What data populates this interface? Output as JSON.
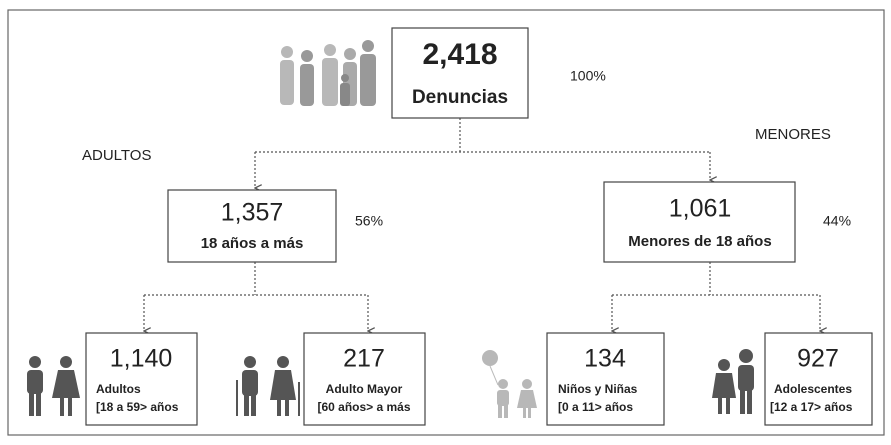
{
  "root": {
    "value": "2,418",
    "label": "Denuncias",
    "percent": "100%"
  },
  "groups": [
    "ADULTOS",
    "MENORES"
  ],
  "level2": [
    {
      "value": "1,357",
      "label": "18 años a más",
      "percent": "56%"
    },
    {
      "value": "1,061",
      "label": "Menores de 18 años",
      "percent": "44%"
    }
  ],
  "level3": [
    {
      "value": "1,140",
      "label": "Adultos",
      "range": "[18 a 59> años"
    },
    {
      "value": "217",
      "label": "Adulto Mayor",
      "range": "[60 años> a más"
    },
    {
      "value": "134",
      "label": "Niños y Niñas",
      "range": "[0 a 11> años"
    },
    {
      "value": "927",
      "label": "Adolescentes",
      "range": "[12 a 17> años"
    }
  ]
}
